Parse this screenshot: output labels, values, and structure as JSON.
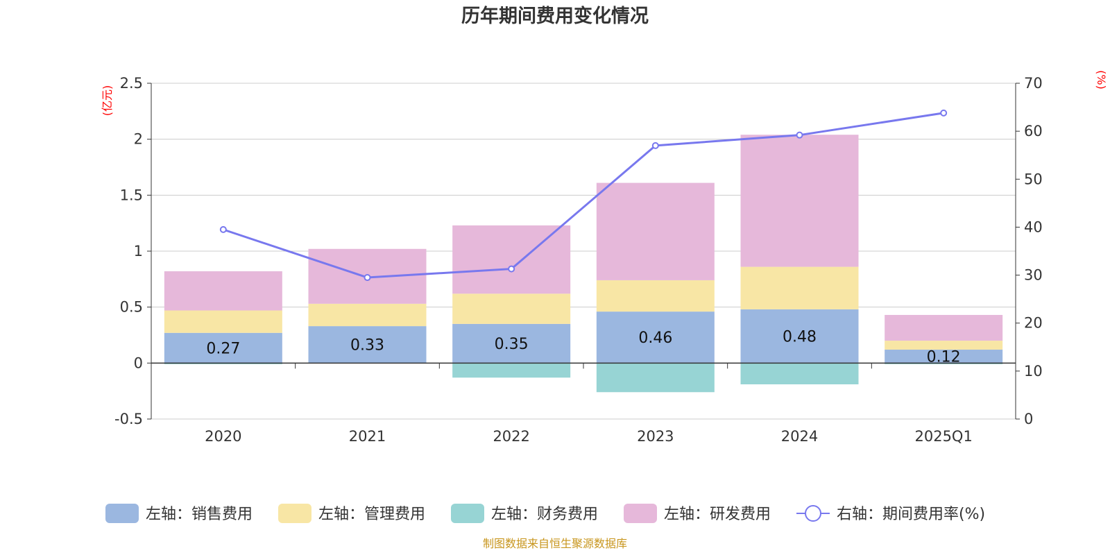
{
  "chart_data": {
    "type": "bar",
    "title": "历年期间费用变化情况",
    "categories": [
      "2020",
      "2021",
      "2022",
      "2023",
      "2024",
      "2025Q1"
    ],
    "left_axis": {
      "unit": "(亿元)",
      "ticks": [
        "2.5",
        "2",
        "1.5",
        "1",
        "0.5",
        "0",
        "-0.5"
      ],
      "range": [
        -0.5,
        2.5
      ]
    },
    "right_axis": {
      "unit": "(%)",
      "ticks": [
        "70",
        "60",
        "50",
        "40",
        "30",
        "20",
        "10",
        "0"
      ],
      "range": [
        0,
        70
      ]
    },
    "series": [
      {
        "name": "左轴：销售费用",
        "color": "#9bb7e0",
        "axis": "left",
        "values": [
          0.27,
          0.33,
          0.35,
          0.46,
          0.48,
          0.12
        ]
      },
      {
        "name": "左轴：管理费用",
        "color": "#f8e6a5",
        "axis": "left",
        "values": [
          0.2,
          0.2,
          0.27,
          0.28,
          0.38,
          0.08
        ]
      },
      {
        "name": "左轴：财务费用",
        "color": "#97d4d4",
        "axis": "left",
        "values": [
          -0.01,
          0.0,
          -0.13,
          -0.26,
          -0.19,
          -0.01
        ]
      },
      {
        "name": "左轴：研发费用",
        "color": "#e6b8da",
        "axis": "left",
        "values": [
          0.35,
          0.49,
          0.61,
          0.87,
          1.18,
          0.23
        ]
      },
      {
        "name": "右轴：期间费用率(%)",
        "color": "#7878ee",
        "axis": "right",
        "type": "line",
        "values": [
          39.5,
          29.5,
          31.3,
          57.0,
          59.2,
          63.8
        ]
      }
    ],
    "data_labels": [
      "0.27",
      "0.33",
      "0.35",
      "0.46",
      "0.48",
      "0.12"
    ],
    "grid": true,
    "legend_position": "bottom"
  },
  "footer": {
    "source": "制图数据来自恒生聚源数据库"
  }
}
